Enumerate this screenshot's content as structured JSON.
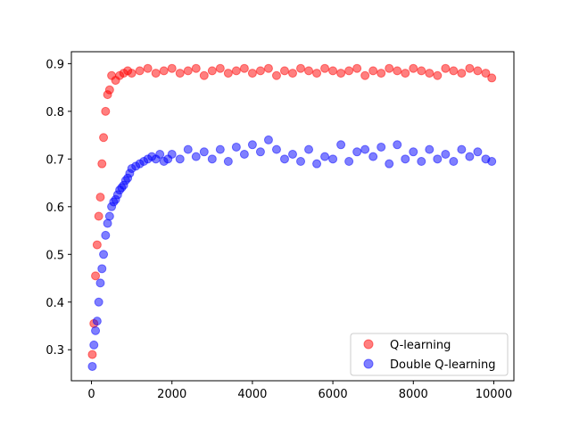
{
  "chart_data": {
    "type": "scatter",
    "title": "",
    "xlabel": "",
    "ylabel": "",
    "xlim": [
      -500,
      10500
    ],
    "ylim": [
      0.235,
      0.925
    ],
    "xticks": [
      0,
      2000,
      4000,
      6000,
      8000,
      10000
    ],
    "yticks": [
      0.3,
      0.4,
      0.5,
      0.6,
      0.7,
      0.8,
      0.9
    ],
    "xtick_labels": [
      "0",
      "2000",
      "4000",
      "6000",
      "8000",
      "10000"
    ],
    "ytick_labels": [
      "0.3",
      "0.4",
      "0.5",
      "0.6",
      "0.7",
      "0.8",
      "0.9"
    ],
    "legend_position": "lower-right",
    "grid": false,
    "series": [
      {
        "name": "Q-learning",
        "color": "#ff0000",
        "x": [
          20,
          60,
          100,
          140,
          180,
          220,
          260,
          300,
          350,
          400,
          450,
          500,
          600,
          700,
          800,
          900,
          1000,
          1200,
          1400,
          1600,
          1800,
          2000,
          2200,
          2400,
          2600,
          2800,
          3000,
          3200,
          3400,
          3600,
          3800,
          4000,
          4200,
          4400,
          4600,
          4800,
          5000,
          5200,
          5400,
          5600,
          5800,
          6000,
          6200,
          6400,
          6600,
          6800,
          7000,
          7200,
          7400,
          7600,
          7800,
          8000,
          8200,
          8400,
          8600,
          8800,
          9000,
          9200,
          9400,
          9600,
          9800,
          9950
        ],
        "y": [
          0.29,
          0.355,
          0.455,
          0.52,
          0.58,
          0.62,
          0.69,
          0.745,
          0.8,
          0.835,
          0.845,
          0.875,
          0.865,
          0.875,
          0.88,
          0.885,
          0.88,
          0.885,
          0.89,
          0.88,
          0.885,
          0.89,
          0.88,
          0.885,
          0.89,
          0.875,
          0.885,
          0.89,
          0.88,
          0.885,
          0.89,
          0.88,
          0.885,
          0.89,
          0.875,
          0.885,
          0.88,
          0.89,
          0.885,
          0.88,
          0.89,
          0.885,
          0.88,
          0.885,
          0.89,
          0.875,
          0.885,
          0.88,
          0.89,
          0.885,
          0.88,
          0.89,
          0.885,
          0.88,
          0.875,
          0.89,
          0.885,
          0.88,
          0.89,
          0.885,
          0.88,
          0.87
        ]
      },
      {
        "name": "Double Q-learning",
        "color": "#0000ff",
        "x": [
          20,
          60,
          100,
          140,
          180,
          220,
          260,
          300,
          350,
          400,
          450,
          500,
          550,
          600,
          650,
          700,
          750,
          800,
          850,
          900,
          950,
          1000,
          1100,
          1200,
          1300,
          1400,
          1500,
          1600,
          1700,
          1800,
          1900,
          2000,
          2200,
          2400,
          2600,
          2800,
          3000,
          3200,
          3400,
          3600,
          3800,
          4000,
          4200,
          4400,
          4600,
          4800,
          5000,
          5200,
          5400,
          5600,
          5800,
          6000,
          6200,
          6400,
          6600,
          6800,
          7000,
          7200,
          7400,
          7600,
          7800,
          8000,
          8200,
          8400,
          8600,
          8800,
          9000,
          9200,
          9400,
          9600,
          9800,
          9950
        ],
        "y": [
          0.265,
          0.31,
          0.34,
          0.36,
          0.4,
          0.44,
          0.47,
          0.5,
          0.54,
          0.565,
          0.58,
          0.6,
          0.61,
          0.615,
          0.625,
          0.635,
          0.64,
          0.645,
          0.655,
          0.66,
          0.67,
          0.68,
          0.685,
          0.69,
          0.695,
          0.7,
          0.705,
          0.7,
          0.71,
          0.695,
          0.7,
          0.71,
          0.7,
          0.72,
          0.705,
          0.715,
          0.7,
          0.72,
          0.695,
          0.725,
          0.71,
          0.73,
          0.715,
          0.74,
          0.72,
          0.7,
          0.71,
          0.695,
          0.72,
          0.69,
          0.705,
          0.7,
          0.73,
          0.695,
          0.715,
          0.72,
          0.705,
          0.725,
          0.69,
          0.73,
          0.7,
          0.715,
          0.695,
          0.72,
          0.7,
          0.71,
          0.695,
          0.72,
          0.705,
          0.715,
          0.7,
          0.695
        ]
      }
    ]
  }
}
